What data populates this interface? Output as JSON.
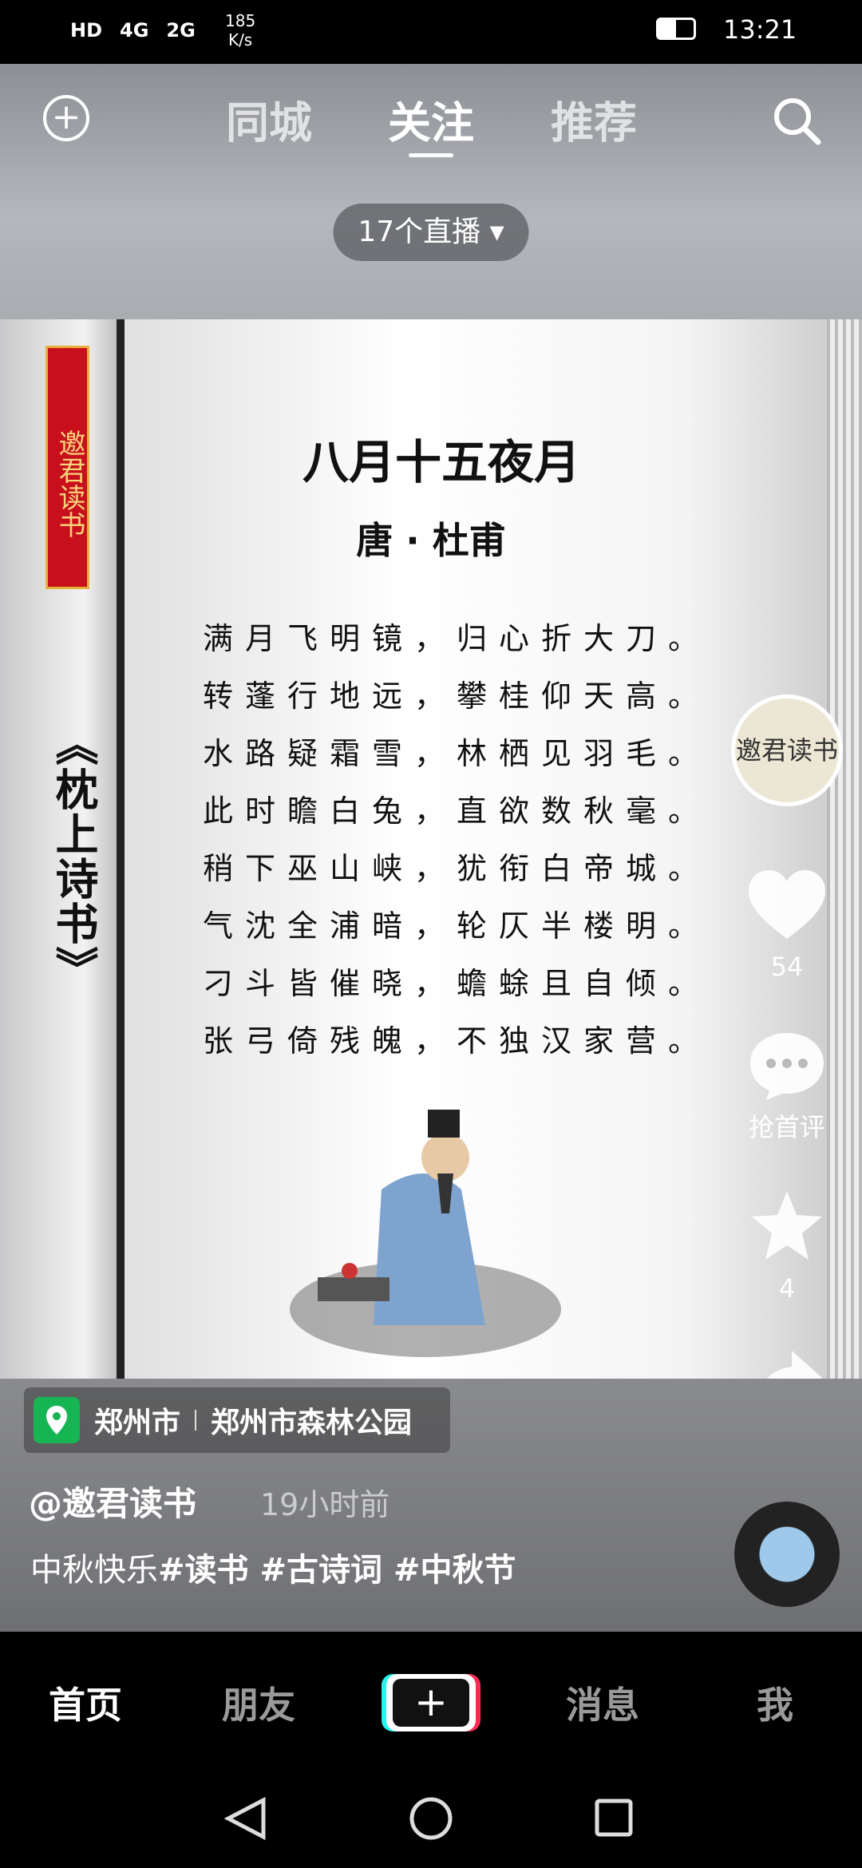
{
  "status_bar": {
    "left": [
      "HD",
      "4G",
      "2G"
    ],
    "speed": "185",
    "speed_unit": "K/s",
    "time": "13:21"
  },
  "top_tabs": [
    "同城",
    "关注",
    "推荐"
  ],
  "live_pill": "17个直播",
  "video": {
    "banner": "邀君读书",
    "vertical_title": "《枕上诗书》",
    "poem": {
      "title": "八月十五夜月",
      "author": "唐 · 杜甫",
      "lines": [
        "满月飞明镜，归心折大刀。",
        "转蓬行地远，攀桂仰天高。",
        "水路疑霜雪，林栖见羽毛。",
        "此时瞻白兔，直欲数秋毫。",
        "稍下巫山峡，犹衔白帝城。",
        "气沈全浦暗，轮仄半楼明。",
        "刁斗皆催晓，蟾蜍且自倾。",
        "张弓倚残魄，不独汉家营。"
      ]
    }
  },
  "actions": {
    "avatar": "邀君读书",
    "likes": "54",
    "comment": "抢首评",
    "favorites": "4",
    "share": "分享"
  },
  "location": {
    "city": "郑州市",
    "place": "郑州市森林公园"
  },
  "author": "@邀君读书",
  "posted": "19小时前",
  "caption": {
    "text": "中秋快乐",
    "tags": [
      "#读书",
      "#古诗词",
      "#中秋节"
    ]
  },
  "bottom_nav": [
    "首页",
    "朋友",
    "消息",
    "我"
  ]
}
